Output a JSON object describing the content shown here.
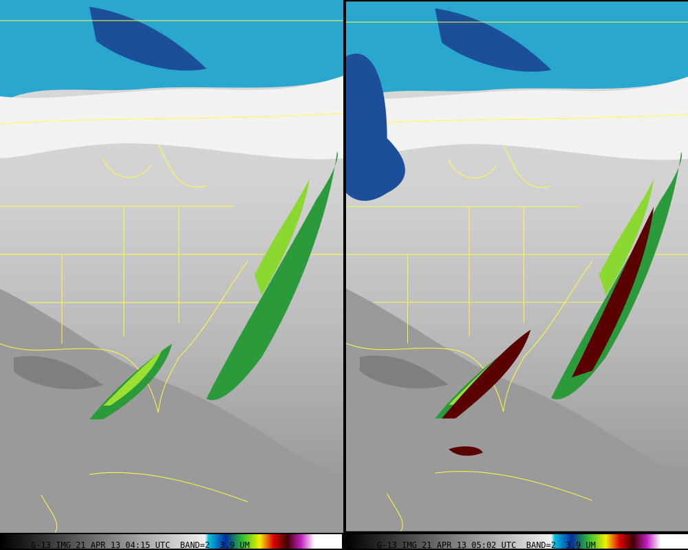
{
  "panels": [
    {
      "caption": "G-13 IMG 21 APR 13 04:15 UTC  BAND=2  3.9 UM"
    },
    {
      "caption": "G-13 IMG 21 APR 13 05:02 UTC  BAND=2  3.9 UM"
    }
  ]
}
